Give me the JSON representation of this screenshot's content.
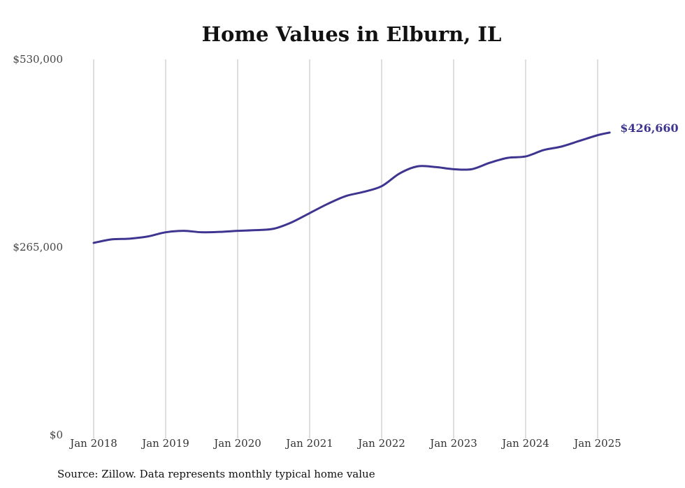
{
  "chart_data": {
    "type": "line",
    "title": "Home Values in Elburn, IL",
    "xlabel": "",
    "ylabel": "",
    "source": "Source: Zillow. Data represents monthly typical home value",
    "x_ticks": [
      "Jan 2018",
      "Jan 2019",
      "Jan 2020",
      "Jan 2021",
      "Jan 2022",
      "Jan 2023",
      "Jan 2024",
      "Jan 2025"
    ],
    "y_ticks": [
      "$0",
      "$265,000",
      "$530,000"
    ],
    "y_tick_values": [
      0,
      265000,
      530000
    ],
    "ylim": [
      0,
      530000
    ],
    "xlim": [
      "Jan 2018",
      "Mar 2025"
    ],
    "grid": "vertical",
    "line_color": "#3e3590",
    "end_label": "$426,660",
    "series": [
      {
        "values": [
          {
            "x": "2018-01",
            "y": 271000
          },
          {
            "x": "2018-04",
            "y": 276000
          },
          {
            "x": "2018-07",
            "y": 277000
          },
          {
            "x": "2018-10",
            "y": 280000
          },
          {
            "x": "2019-01",
            "y": 286000
          },
          {
            "x": "2019-04",
            "y": 288000
          },
          {
            "x": "2019-07",
            "y": 286000
          },
          {
            "x": "2019-10",
            "y": 286500
          },
          {
            "x": "2020-01",
            "y": 288000
          },
          {
            "x": "2020-04",
            "y": 289000
          },
          {
            "x": "2020-07",
            "y": 291000
          },
          {
            "x": "2020-10",
            "y": 300000
          },
          {
            "x": "2021-01",
            "y": 313000
          },
          {
            "x": "2021-04",
            "y": 326000
          },
          {
            "x": "2021-07",
            "y": 337000
          },
          {
            "x": "2021-10",
            "y": 343000
          },
          {
            "x": "2022-01",
            "y": 351000
          },
          {
            "x": "2022-04",
            "y": 369000
          },
          {
            "x": "2022-07",
            "y": 379000
          },
          {
            "x": "2022-10",
            "y": 378000
          },
          {
            "x": "2023-01",
            "y": 375000
          },
          {
            "x": "2023-04",
            "y": 375000
          },
          {
            "x": "2023-07",
            "y": 384000
          },
          {
            "x": "2023-10",
            "y": 391000
          },
          {
            "x": "2024-01",
            "y": 393000
          },
          {
            "x": "2024-04",
            "y": 402000
          },
          {
            "x": "2024-07",
            "y": 407000
          },
          {
            "x": "2024-10",
            "y": 415000
          },
          {
            "x": "2025-01",
            "y": 423000
          },
          {
            "x": "2025-03",
            "y": 426660
          }
        ]
      }
    ]
  }
}
